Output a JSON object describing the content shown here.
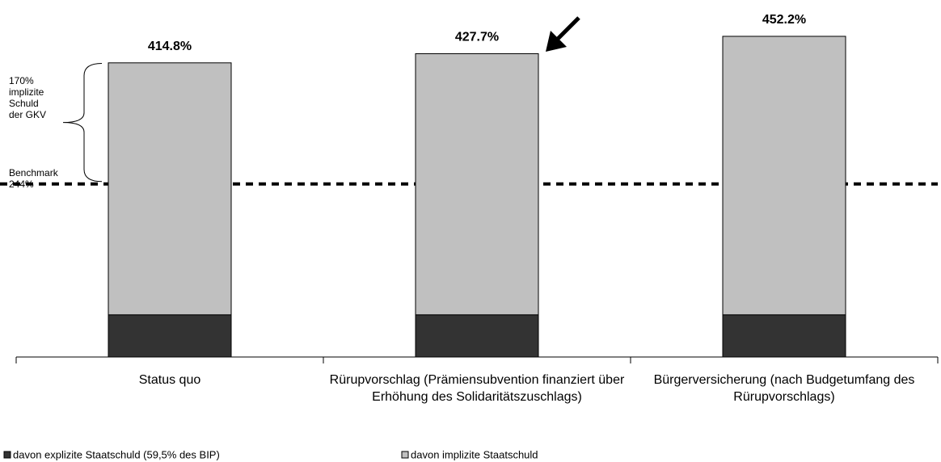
{
  "chart_data": {
    "type": "stacked_bar",
    "categories": [
      "Status quo",
      "Rürupvorschlag (Prämiensubvention finanziert über Erhöhung des Solidaritätszuschlags)",
      "Bürgerversicherung (nach Budgetumfang des Rürupvorschlags)"
    ],
    "series": [
      {
        "name": "davon explizite Staatschuld (59,5% des BIP)",
        "color": "#333333",
        "values": [
          59.5,
          59.5,
          59.5
        ]
      },
      {
        "name": "davon implizite Staatschuld",
        "color": "#c0c0c0",
        "values": [
          355.3,
          368.2,
          392.7
        ]
      }
    ],
    "totals": {
      "values": [
        414.8,
        427.7,
        452.2
      ],
      "value_labels": [
        "414.8%",
        "427.7%",
        "452.2%"
      ]
    },
    "ylim": [
      0,
      500
    ],
    "benchmark": {
      "value": 244,
      "lines": [
        "Benchmark",
        "244%"
      ]
    },
    "brace": {
      "value": 170,
      "lines": [
        "170%",
        "implizite",
        "Schuld",
        "der GKV"
      ]
    },
    "legend": "bottom"
  }
}
